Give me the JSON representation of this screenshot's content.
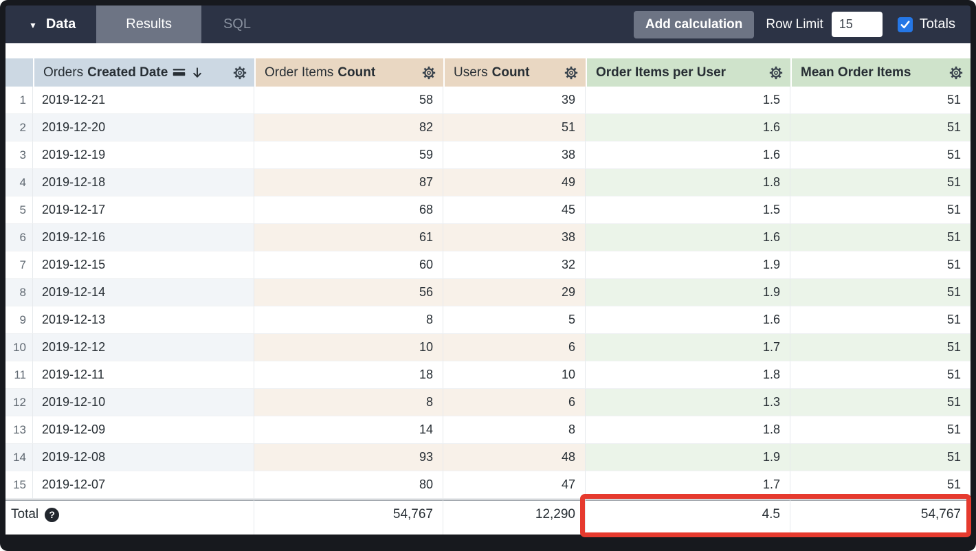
{
  "topbar": {
    "data_tab": "Data",
    "results_tab": "Results",
    "sql_tab": "SQL",
    "add_calculation_label": "Add calculation",
    "row_limit_label": "Row Limit",
    "row_limit_value": "15",
    "totals_label": "Totals",
    "totals_checked": true
  },
  "table": {
    "columns": [
      {
        "type": "index",
        "label": ""
      },
      {
        "type": "dimension",
        "view": "Orders",
        "field": "Created Date",
        "sort": "descending"
      },
      {
        "type": "measure",
        "view": "Order Items",
        "field": "Count"
      },
      {
        "type": "measure",
        "view": "Users",
        "field": "Count"
      },
      {
        "type": "calculation",
        "label": "Order Items per User"
      },
      {
        "type": "calculation",
        "label": "Mean Order Items"
      }
    ],
    "rows": [
      {
        "index": "1",
        "cells": [
          "2019-12-21",
          "58",
          "39",
          "1.5",
          "51"
        ]
      },
      {
        "index": "2",
        "cells": [
          "2019-12-20",
          "82",
          "51",
          "1.6",
          "51"
        ]
      },
      {
        "index": "3",
        "cells": [
          "2019-12-19",
          "59",
          "38",
          "1.6",
          "51"
        ]
      },
      {
        "index": "4",
        "cells": [
          "2019-12-18",
          "87",
          "49",
          "1.8",
          "51"
        ]
      },
      {
        "index": "5",
        "cells": [
          "2019-12-17",
          "68",
          "45",
          "1.5",
          "51"
        ]
      },
      {
        "index": "6",
        "cells": [
          "2019-12-16",
          "61",
          "38",
          "1.6",
          "51"
        ]
      },
      {
        "index": "7",
        "cells": [
          "2019-12-15",
          "60",
          "32",
          "1.9",
          "51"
        ]
      },
      {
        "index": "8",
        "cells": [
          "2019-12-14",
          "56",
          "29",
          "1.9",
          "51"
        ]
      },
      {
        "index": "9",
        "cells": [
          "2019-12-13",
          "8",
          "5",
          "1.6",
          "51"
        ]
      },
      {
        "index": "10",
        "cells": [
          "2019-12-12",
          "10",
          "6",
          "1.7",
          "51"
        ]
      },
      {
        "index": "11",
        "cells": [
          "2019-12-11",
          "18",
          "10",
          "1.8",
          "51"
        ]
      },
      {
        "index": "12",
        "cells": [
          "2019-12-10",
          "8",
          "6",
          "1.3",
          "51"
        ]
      },
      {
        "index": "13",
        "cells": [
          "2019-12-09",
          "14",
          "8",
          "1.8",
          "51"
        ]
      },
      {
        "index": "14",
        "cells": [
          "2019-12-08",
          "93",
          "48",
          "1.9",
          "51"
        ]
      },
      {
        "index": "15",
        "cells": [
          "2019-12-07",
          "80",
          "47",
          "1.7",
          "51"
        ]
      }
    ],
    "totals": {
      "label": "Total",
      "cells": [
        "54,767",
        "12,290",
        "4.5",
        "54,767"
      ]
    }
  },
  "annotation": {
    "type": "highlight-box",
    "around": "totals of Order Items per User and Mean Order Items",
    "color": "#e63a2e"
  },
  "colors": {
    "topbar_bg": "#2c3345",
    "tab_active_bg": "#6d7484",
    "button_bg": "#6d7484",
    "checkbox_blue": "#2577e6",
    "header_dimension_bg": "#ccd8e3",
    "header_measure_bg": "#e9d7c2",
    "header_calculation_bg": "#cfe3cb",
    "band_dimension": "#f2f5f8",
    "band_measure": "#f8f1e9",
    "band_calculation": "#ebf4e9",
    "annotation_red": "#e63a2e"
  }
}
